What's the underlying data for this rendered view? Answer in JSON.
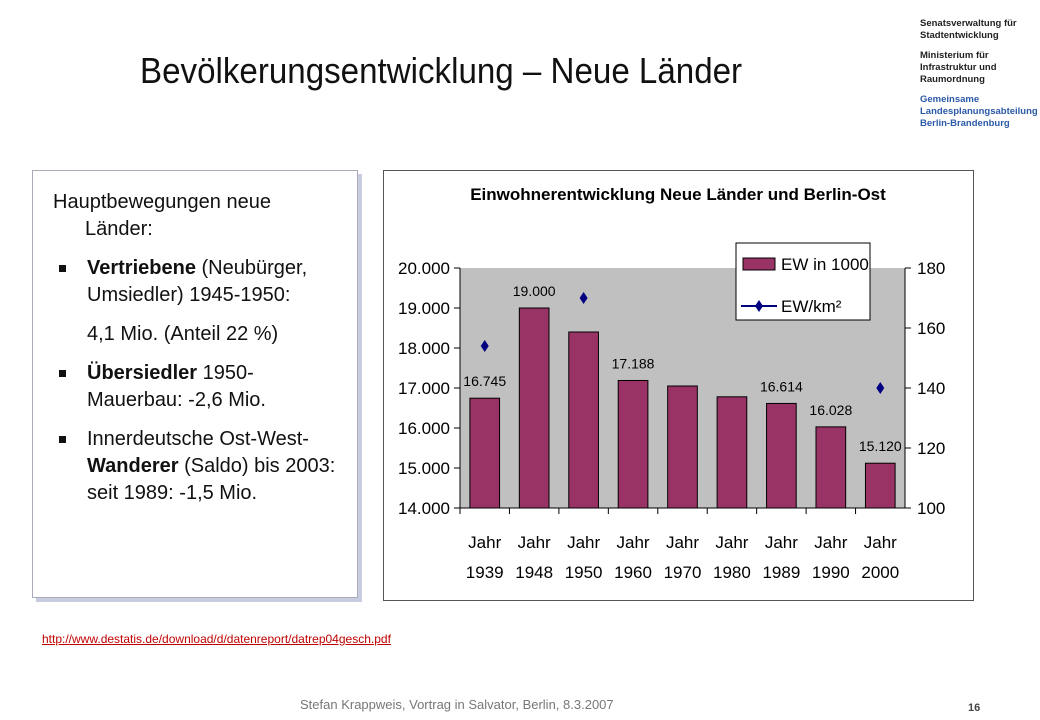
{
  "title": "Bevölkerungsentwicklung – Neue Länder",
  "logos": [
    "Senatsverwaltung für Stadtentwicklung",
    "Ministerium für Infrastruktur und Raumordnung",
    "Gemeinsame Landesplanungsabteilung Berlin-Brandenburg"
  ],
  "textbox": {
    "heading": "Hauptbewegungen neue Länder:",
    "bullets": [
      {
        "parts": [
          {
            "text": "Vertriebene",
            "bold": true
          },
          {
            "text": " (Neubürger, Umsiedler) 1945-1950:"
          }
        ],
        "extra": "4,1 Mio. (Anteil 22 %)"
      },
      {
        "parts": [
          {
            "text": "Übersiedler",
            "bold": true
          },
          {
            "text": " 1950-Mauerbau: -2,6 Mio."
          }
        ]
      },
      {
        "parts": [
          {
            "text": "Innerdeutsche Ost-West-"
          },
          {
            "text": " Wanderer",
            "bold": true
          },
          {
            "text": " (Saldo) bis 2003: seit 1989: -1,5 Mio."
          }
        ]
      }
    ]
  },
  "link": "http://www.destatis.de/download/d/datenreport/datrep04gesch.pdf",
  "footer": "Stefan Krappweis, Vortrag in Salvator,  Berlin, 8.3.2007",
  "page_number": "16",
  "chart_data": {
    "type": "bar",
    "title": "Einwohnerentwicklung Neue Länder und Berlin-Ost",
    "categories": [
      "Jahr 1939",
      "Jahr 1948",
      "Jahr 1950",
      "Jahr 1960",
      "Jahr 1970",
      "Jahr 1980",
      "Jahr 1989",
      "Jahr 1990",
      "Jahr 2000"
    ],
    "series": [
      {
        "name": "EW in 1000",
        "color": "#993366",
        "values": [
          16745,
          19000,
          18400,
          17188,
          17050,
          16780,
          16614,
          16028,
          15120
        ],
        "value_labels": [
          "16.745",
          "19.000",
          null,
          "17.188",
          null,
          null,
          "16.614",
          "16.028",
          "15.120"
        ]
      },
      {
        "name": "EW/km²",
        "color": "#000080",
        "axis": "y2",
        "values": [
          154,
          null,
          170,
          null,
          null,
          null,
          null,
          null,
          140
        ]
      }
    ],
    "ylim": [
      14000,
      20000
    ],
    "yticks": [
      {
        "value": 14000,
        "label": "14.000"
      },
      {
        "value": 15000,
        "label": "15.000"
      },
      {
        "value": 16000,
        "label": "16.000"
      },
      {
        "value": 17000,
        "label": "17.000"
      },
      {
        "value": 18000,
        "label": "18.000"
      },
      {
        "value": 19000,
        "label": "19.000"
      },
      {
        "value": 20000,
        "label": "20.000"
      }
    ],
    "y2lim": [
      100,
      180
    ],
    "y2ticks": [
      100,
      120,
      140,
      160,
      180
    ],
    "grid": false,
    "legend": "top-right"
  }
}
